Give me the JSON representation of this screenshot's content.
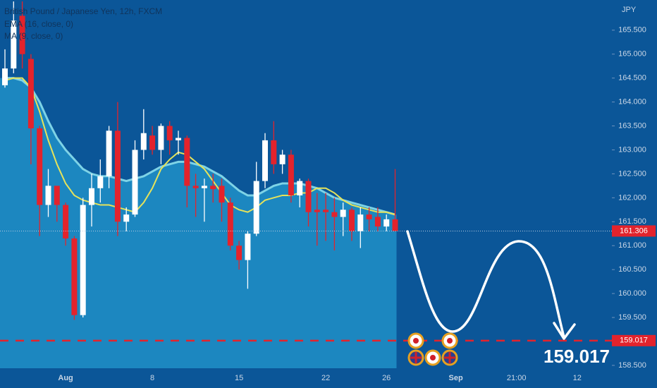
{
  "chart_data": {
    "type": "candlestick",
    "title": "British Pound / Japanese Yen, 12h, FXCM",
    "y_unit": "JPY",
    "categories": [
      null,
      null,
      null,
      null,
      null,
      null,
      null,
      "Aug",
      null,
      null,
      null,
      null,
      null,
      null,
      null,
      null,
      null,
      "8",
      null,
      null,
      null,
      null,
      null,
      null,
      null,
      null,
      null,
      "15",
      null,
      null,
      null,
      null,
      null,
      null,
      null,
      null,
      null,
      "22",
      null,
      null,
      null,
      null,
      null,
      null,
      "26",
      null,
      null,
      null,
      null,
      null,
      null,
      null,
      "Sep",
      null,
      null,
      null,
      null,
      null,
      null,
      "21:00",
      null,
      null,
      null,
      null,
      null,
      null,
      "12",
      null,
      null,
      null
    ],
    "open": [
      164.35,
      164.7,
      165.8,
      164.9,
      163.45,
      161.85,
      162.25,
      161.85,
      161.15,
      159.55,
      161.85,
      162.2,
      162.45,
      163.4,
      161.5,
      161.65,
      163.0,
      163.3,
      163.0,
      163.5,
      163.2,
      163.25,
      162.25,
      162.2,
      162.25,
      162.25,
      161.9,
      161.0,
      160.7,
      161.25,
      162.35,
      163.2,
      162.7,
      162.9,
      162.05,
      162.35,
      161.75,
      161.75,
      161.7,
      161.6,
      161.75,
      161.3,
      161.65,
      161.6,
      161.4,
      161.55,
      null,
      null,
      null,
      null,
      null,
      null,
      null,
      null,
      null,
      null,
      null,
      null,
      null,
      null,
      null,
      null,
      null,
      null,
      null,
      null,
      null,
      null,
      null,
      null
    ],
    "high": [
      165.1,
      166.1,
      166.1,
      165.0,
      163.5,
      162.6,
      162.2,
      161.9,
      161.2,
      162.0,
      162.5,
      162.8,
      163.5,
      164.0,
      161.8,
      163.2,
      163.85,
      163.5,
      163.55,
      163.6,
      163.4,
      163.3,
      162.5,
      162.4,
      162.5,
      162.4,
      162.0,
      161.1,
      161.3,
      162.75,
      163.35,
      163.6,
      163.0,
      163.0,
      162.4,
      162.4,
      162.1,
      162.1,
      162.0,
      161.9,
      161.8,
      161.8,
      161.8,
      161.8,
      161.65,
      162.6,
      null,
      null,
      null,
      null,
      null,
      null,
      null,
      null,
      null,
      null,
      null,
      null,
      null,
      null,
      null,
      null,
      null,
      null,
      null,
      null,
      null,
      null,
      null,
      null
    ],
    "low": [
      164.3,
      164.6,
      164.7,
      162.7,
      161.2,
      161.6,
      161.5,
      161.0,
      159.45,
      159.5,
      161.4,
      161.9,
      162.2,
      161.2,
      161.3,
      161.6,
      162.8,
      162.9,
      162.7,
      162.9,
      162.9,
      161.8,
      161.6,
      161.5,
      161.9,
      161.5,
      160.9,
      160.5,
      160.1,
      161.2,
      162.2,
      162.5,
      162.5,
      161.9,
      161.8,
      161.4,
      161.0,
      161.1,
      160.9,
      161.2,
      161.1,
      160.95,
      161.3,
      161.3,
      161.3,
      161.3,
      null,
      null,
      null,
      null,
      null,
      null,
      null,
      null,
      null,
      null,
      null,
      null,
      null,
      null,
      null,
      null,
      null,
      null,
      null,
      null,
      null,
      null,
      null,
      null
    ],
    "close": [
      164.7,
      165.7,
      165.0,
      163.45,
      161.85,
      162.25,
      161.85,
      161.15,
      159.55,
      161.85,
      162.2,
      162.45,
      163.4,
      161.5,
      161.65,
      163.0,
      163.35,
      163.0,
      163.5,
      163.2,
      163.25,
      162.25,
      162.2,
      162.25,
      162.18,
      161.9,
      161.0,
      160.7,
      161.25,
      162.35,
      163.2,
      162.7,
      162.9,
      162.05,
      162.35,
      161.7,
      161.7,
      161.7,
      161.6,
      161.75,
      161.3,
      161.65,
      161.55,
      161.4,
      161.55,
      161.306,
      null,
      null,
      null,
      null,
      null,
      null,
      null,
      null,
      null,
      null,
      null,
      null,
      null,
      null,
      null,
      null,
      null,
      null,
      null,
      null,
      null,
      null,
      null,
      null
    ],
    "up_color": "#ffffff",
    "down_color": "#e3232c",
    "series": [
      {
        "name": "EMA (16, close, 0)",
        "color": "#7ed3e6",
        "values": [
          164.5,
          164.5,
          164.45,
          164.3,
          164.0,
          163.6,
          163.25,
          163.0,
          162.8,
          162.6,
          162.5,
          162.45,
          162.45,
          162.4,
          162.35,
          162.4,
          162.45,
          162.55,
          162.65,
          162.7,
          162.75,
          162.75,
          162.7,
          162.65,
          162.55,
          162.45,
          162.3,
          162.15,
          162.05,
          162.05,
          162.15,
          162.25,
          162.3,
          162.3,
          162.3,
          162.25,
          162.2,
          162.1,
          162.0,
          161.95,
          161.9,
          161.85,
          161.8,
          161.75,
          161.7,
          161.65,
          null,
          null,
          null,
          null,
          null,
          null,
          null,
          null,
          null,
          null,
          null,
          null,
          null,
          null,
          null,
          null,
          null,
          null,
          null,
          null,
          null,
          null,
          null,
          null
        ]
      },
      {
        "name": "MA (9, close, 0)",
        "color": "#e6e35a",
        "values": [
          164.45,
          164.5,
          164.5,
          164.3,
          163.8,
          163.2,
          162.7,
          162.3,
          162.05,
          161.95,
          161.9,
          161.85,
          161.85,
          161.8,
          161.75,
          161.7,
          161.9,
          162.2,
          162.6,
          162.8,
          162.95,
          162.9,
          162.75,
          162.6,
          162.35,
          162.1,
          161.85,
          161.75,
          161.7,
          161.8,
          161.95,
          162.0,
          162.05,
          162.05,
          162.1,
          162.1,
          162.2,
          162.2,
          162.1,
          161.95,
          161.85,
          161.8,
          161.75,
          161.7,
          161.7,
          161.65,
          null,
          null,
          null,
          null,
          null,
          null,
          null,
          null,
          null,
          null,
          null,
          null,
          null,
          null,
          null,
          null,
          null,
          null,
          null,
          null,
          null,
          null,
          null,
          null
        ]
      }
    ],
    "ema_fill": "#1e8dc4",
    "last_price": 161.306,
    "target": 159.017,
    "ylim": [
      158.44,
      166.13
    ],
    "yticks": [
      {
        "value": 158.5,
        "label": "158.500"
      },
      {
        "value": 159.5,
        "label": "159.500"
      },
      {
        "value": 160.0,
        "label": "160.000"
      },
      {
        "value": 160.5,
        "label": "160.500"
      },
      {
        "value": 161.0,
        "label": "161.000"
      },
      {
        "value": 161.5,
        "label": "161.500"
      },
      {
        "value": 162.0,
        "label": "162.000"
      },
      {
        "value": 162.5,
        "label": "162.500"
      },
      {
        "value": 163.0,
        "label": "163.000"
      },
      {
        "value": 163.5,
        "label": "163.500"
      },
      {
        "value": 164.0,
        "label": "164.000"
      },
      {
        "value": 164.5,
        "label": "164.500"
      },
      {
        "value": 165.0,
        "label": "165.000"
      },
      {
        "value": 165.5,
        "label": "165.500"
      }
    ]
  }
}
